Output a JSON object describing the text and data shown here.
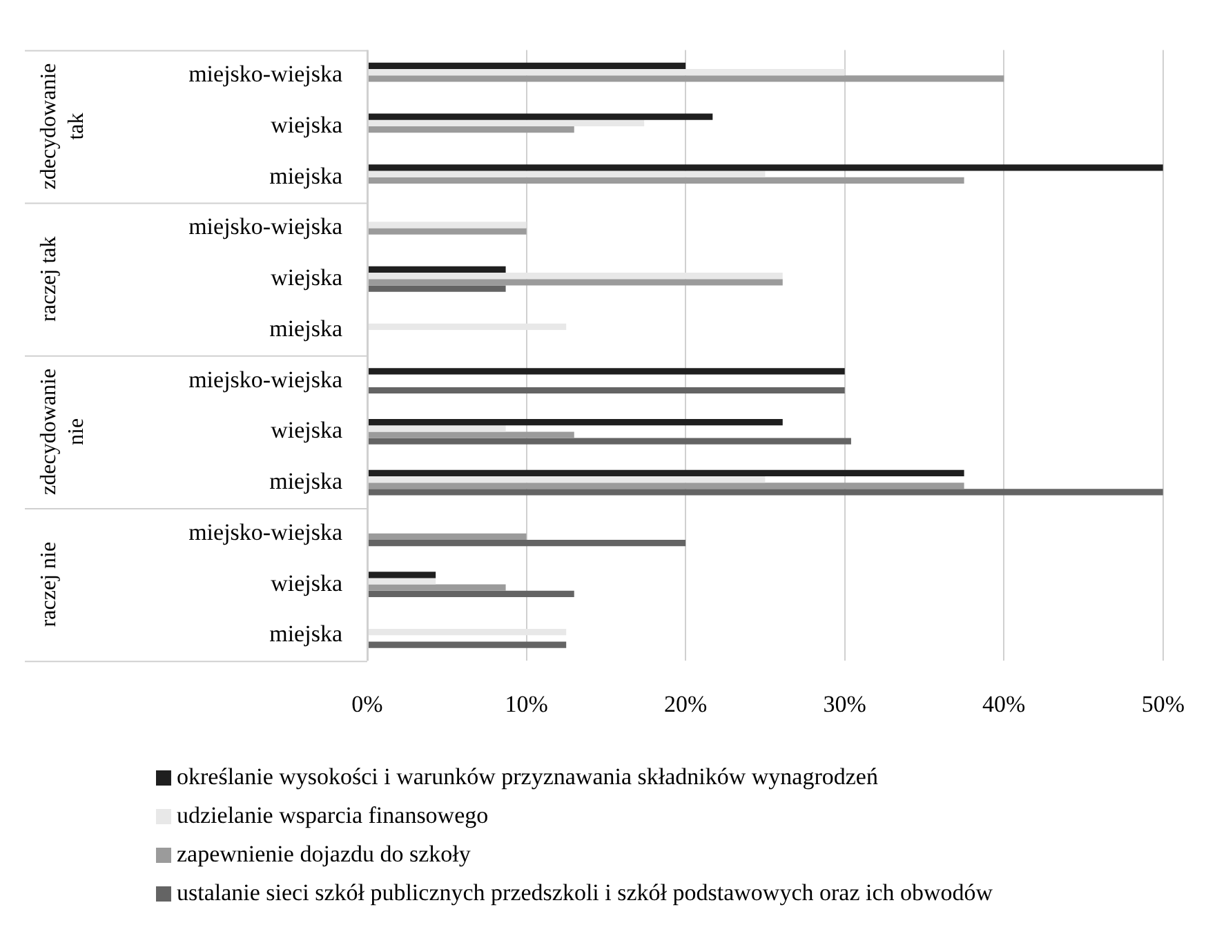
{
  "chart_data": {
    "type": "bar",
    "orientation": "horizontal",
    "categories": [
      "miejsko-wiejska",
      "wiejska",
      "miejska",
      "miejsko-wiejska",
      "wiejska",
      "miejska",
      "miejsko-wiejska",
      "wiejska",
      "miejska",
      "miejsko-wiejska",
      "wiejska",
      "miejska"
    ],
    "series": [
      {
        "name": "określanie wysokości i warunków przyznawania składników wynagrodzeń",
        "color": "#1f1f1f",
        "values": [
          20,
          21.7,
          50,
          0,
          8.7,
          0,
          30,
          26.1,
          37.5,
          0,
          4.3,
          0
        ]
      },
      {
        "name": "udzielanie wsparcia finansowego",
        "color": "#e8e8e8",
        "values": [
          30,
          17.4,
          25,
          10,
          26.1,
          12.5,
          0,
          8.7,
          25,
          0,
          4.3,
          12.5
        ]
      },
      {
        "name": "zapewnienie dojazdu do szkoły",
        "color": "#9b9b9b",
        "values": [
          40,
          13,
          37.5,
          10,
          26.1,
          0,
          0,
          13,
          37.5,
          10,
          8.7,
          0
        ]
      },
      {
        "name": "ustalanie sieci szkół publicznych przedszkoli i szkół podstawowych oraz ich obwodów",
        "color": "#646464",
        "values": [
          0,
          0,
          0,
          0,
          8.7,
          0,
          30,
          30.4,
          50,
          20,
          13,
          12.5
        ]
      }
    ],
    "annotations": [
      "zdecydowanie tak",
      "raczej tak",
      "zdecydowanie nie",
      "raczej nie"
    ],
    "xlim": [
      0,
      50
    ],
    "xticks": [
      {
        "value": 0,
        "label": "0%"
      },
      {
        "value": 10,
        "label": "10%"
      },
      {
        "value": 20,
        "label": "20%"
      },
      {
        "value": 30,
        "label": "30%"
      },
      {
        "value": 40,
        "label": "40%"
      },
      {
        "value": 50,
        "label": "50%"
      }
    ],
    "grid": "x",
    "legend": "bottom"
  }
}
